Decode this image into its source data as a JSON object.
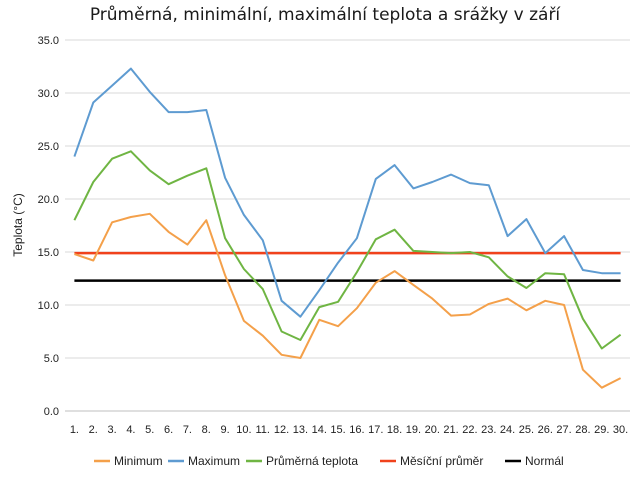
{
  "chart_data": {
    "type": "line",
    "title": "Průměrná, minimální, maximální teplota a srážky v září",
    "xlabel": "",
    "ylabel": "Teplota (°C)",
    "ylim": [
      0,
      35
    ],
    "yticks": [
      "0.0",
      "5.0",
      "10.0",
      "15.0",
      "20.0",
      "25.0",
      "30.0",
      "35.0"
    ],
    "categories": [
      "1.",
      "2.",
      "3.",
      "4.",
      "5.",
      "6.",
      "7.",
      "8.",
      "9.",
      "10.",
      "11.",
      "12.",
      "13.",
      "14.",
      "15.",
      "16.",
      "17.",
      "18.",
      "19.",
      "20.",
      "21.",
      "22.",
      "23.",
      "24.",
      "25.",
      "26.",
      "27.",
      "28.",
      "29.",
      "30."
    ],
    "grid": true,
    "legend_position": "bottom",
    "series": [
      {
        "name": "Minimum",
        "color": "#f4a04a",
        "values": [
          14.8,
          14.2,
          17.8,
          18.3,
          18.6,
          16.9,
          15.7,
          18.0,
          12.8,
          8.5,
          7.1,
          5.3,
          5.0,
          8.6,
          8.0,
          9.7,
          12.1,
          13.2,
          11.9,
          10.6,
          9.0,
          9.1,
          10.1,
          10.6,
          9.5,
          10.4,
          10.0,
          3.9,
          2.2,
          3.1
        ]
      },
      {
        "name": "Maximum",
        "color": "#5e9bd1",
        "values": [
          24.0,
          29.1,
          30.7,
          32.3,
          30.1,
          28.2,
          28.2,
          28.4,
          22.0,
          18.5,
          16.1,
          10.4,
          8.9,
          11.4,
          14.0,
          16.3,
          21.9,
          23.2,
          21.0,
          21.6,
          22.3,
          21.5,
          21.3,
          16.5,
          18.1,
          14.9,
          16.5,
          13.3,
          13.0,
          13.0
        ]
      },
      {
        "name": "Průměrná teplota",
        "color": "#6fb543",
        "values": [
          18.0,
          21.6,
          23.8,
          24.5,
          22.7,
          21.4,
          22.2,
          22.9,
          16.3,
          13.4,
          11.5,
          7.5,
          6.7,
          9.8,
          10.3,
          13.1,
          16.2,
          17.1,
          15.1,
          15.0,
          14.9,
          15.0,
          14.5,
          12.7,
          11.6,
          13.0,
          12.9,
          8.7,
          5.9,
          7.2
        ]
      },
      {
        "name": "Měsíční průměr",
        "color": "#f0421c",
        "values": [
          14.9,
          14.9,
          14.9,
          14.9,
          14.9,
          14.9,
          14.9,
          14.9,
          14.9,
          14.9,
          14.9,
          14.9,
          14.9,
          14.9,
          14.9,
          14.9,
          14.9,
          14.9,
          14.9,
          14.9,
          14.9,
          14.9,
          14.9,
          14.9,
          14.9,
          14.9,
          14.9,
          14.9,
          14.9,
          14.9
        ]
      },
      {
        "name": "Normál",
        "color": "#000000",
        "values": [
          12.3,
          12.3,
          12.3,
          12.3,
          12.3,
          12.3,
          12.3,
          12.3,
          12.3,
          12.3,
          12.3,
          12.3,
          12.3,
          12.3,
          12.3,
          12.3,
          12.3,
          12.3,
          12.3,
          12.3,
          12.3,
          12.3,
          12.3,
          12.3,
          12.3,
          12.3,
          12.3,
          12.3,
          12.3,
          12.3
        ]
      }
    ]
  }
}
